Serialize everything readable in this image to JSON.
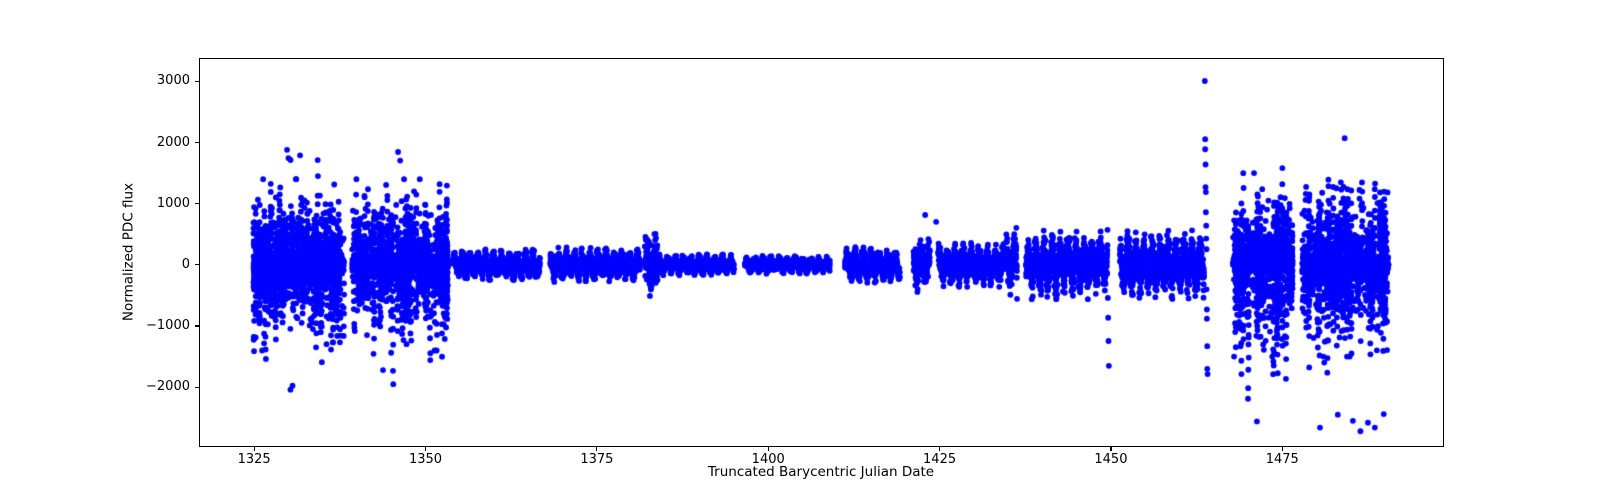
{
  "chart_data": {
    "type": "scatter",
    "title": "",
    "xlabel": "Truncated Barycentric Julian Date",
    "ylabel": "Normalized PDC flux",
    "xlim": [
      1317.1,
      1498.3
    ],
    "ylim": [
      -2945,
      3365
    ],
    "xticks": [
      1325,
      1350,
      1375,
      1400,
      1425,
      1450,
      1475
    ],
    "xtick_labels": [
      "1325",
      "1350",
      "1375",
      "1400",
      "1425",
      "1450",
      "1475"
    ],
    "yticks": [
      -2000,
      -1000,
      0,
      1000,
      2000,
      3000
    ],
    "ytick_labels": [
      "−2000",
      "−1000",
      "0",
      "1000",
      "2000",
      "3000"
    ],
    "grid": false,
    "legend": null,
    "marker": {
      "color": "#0000ff",
      "radius": 2.9
    },
    "axis_color": "#000000",
    "background": "#ffffff",
    "seed": 7,
    "description": "Light curve: noisy high-scatter sectors (~1325-1353 and ~1468-1491, flux spread roughly -2650..+2070 with dense core at 0), quiet oscillating ribbon segments between (amplitude 60-250), sector gaps, and outlier streaks (deepest -1650 at t~1450; tallest +3005 at t~1464).",
    "segments": [
      {
        "kind": "burst",
        "t0": 1324.9,
        "t1": 1338.1,
        "line_per_day": 48,
        "line_sigma": 45,
        "fill_per_day": 30,
        "fill_sigma": 290,
        "fill_cap": 1400,
        "streaks_per_day": 7,
        "amp_min": 260,
        "amp_sigma": 640,
        "cap_up": 1880,
        "cap_down": 2050,
        "down_scale": 1.0
      },
      {
        "kind": "burst",
        "t0": 1339.3,
        "t1": 1353.3,
        "line_per_day": 48,
        "line_sigma": 45,
        "fill_per_day": 30,
        "fill_sigma": 290,
        "fill_cap": 1400,
        "streaks_per_day": 7,
        "amp_min": 260,
        "amp_sigma": 640,
        "cap_up": 1880,
        "cap_down": 2050,
        "down_scale": 1.0
      },
      {
        "kind": "ribbon",
        "t0": 1354.0,
        "t1": 1366.7,
        "n_per_day": 70,
        "amp": 120,
        "sigma": 45,
        "period": 1.15,
        "phase": 0.5
      },
      {
        "kind": "ribbon",
        "t0": 1368.2,
        "t1": 1381.3,
        "n_per_day": 70,
        "amp": 135,
        "sigma": 50,
        "period": 1.15,
        "phase": 1.2
      },
      {
        "kind": "ribbon",
        "t0": 1382.0,
        "t1": 1383.9,
        "n_per_day": 75,
        "amp": 150,
        "sigma": 130,
        "period": 1.15,
        "phase": 0.0
      },
      {
        "kind": "ribbon",
        "t0": 1384.0,
        "t1": 1395.0,
        "n_per_day": 70,
        "amp": 80,
        "sigma": 30,
        "period": 1.15,
        "phase": 0.8
      },
      {
        "kind": "ribbon",
        "t0": 1396.6,
        "t1": 1409.0,
        "n_per_day": 70,
        "amp": 62,
        "sigma": 28,
        "period": 1.18,
        "phase": 0.3
      },
      {
        "kind": "ribbon",
        "t0": 1411.2,
        "t1": 1419.2,
        "n_per_day": 70,
        "amp": 150,
        "sigma": 48,
        "period": 1.17,
        "phase": 0.0
      },
      {
        "kind": "ribbon",
        "t0": 1421.2,
        "t1": 1423.6,
        "n_per_day": 75,
        "amp": 150,
        "sigma": 100,
        "period": 1.17,
        "phase": 2.0
      },
      {
        "kind": "ribbon",
        "t0": 1424.8,
        "t1": 1434.5,
        "n_per_day": 70,
        "amp": 180,
        "sigma": 60,
        "period": 1.17,
        "phase": 0.9
      },
      {
        "kind": "ribbon",
        "t0": 1434.5,
        "t1": 1436.3,
        "n_per_day": 75,
        "amp": 200,
        "sigma": 100,
        "period": 1.17,
        "phase": 0.4
      },
      {
        "kind": "ribbon",
        "t0": 1437.6,
        "t1": 1449.5,
        "n_per_day": 75,
        "amp": 250,
        "sigma": 105,
        "period": 1.17,
        "phase": 0.0
      },
      {
        "kind": "ribbon",
        "t0": 1451.3,
        "t1": 1463.6,
        "n_per_day": 75,
        "amp": 250,
        "sigma": 105,
        "period": 1.17,
        "phase": 1.5
      },
      {
        "kind": "burst",
        "t0": 1467.8,
        "t1": 1476.5,
        "line_per_day": 48,
        "line_sigma": 45,
        "fill_per_day": 30,
        "fill_sigma": 300,
        "fill_cap": 1500,
        "streaks_per_day": 7,
        "amp_min": 260,
        "amp_sigma": 620,
        "cap_up": 1720,
        "cap_down": 2680,
        "down_scale": 1.35
      },
      {
        "kind": "burst",
        "t0": 1477.9,
        "t1": 1490.5,
        "line_per_day": 48,
        "line_sigma": 45,
        "fill_per_day": 30,
        "fill_sigma": 300,
        "fill_cap": 1500,
        "streaks_per_day": 7,
        "amp_min": 260,
        "amp_sigma": 620,
        "cap_up": 1720,
        "cap_down": 2680,
        "down_scale": 1.35
      }
    ],
    "outliers": [
      [
        1329.8,
        1880
      ],
      [
        1330.0,
        1745
      ],
      [
        1331.7,
        1790
      ],
      [
        1330.3,
        -2040
      ],
      [
        1330.6,
        -1975
      ],
      [
        1343.8,
        -1720
      ],
      [
        1345.3,
        -1950
      ],
      [
        1346.0,
        1845
      ],
      [
        1346.3,
        1705
      ],
      [
        1422.9,
        815
      ],
      [
        1424.5,
        703
      ],
      [
        1436.2,
        605
      ],
      [
        1436.3,
        -556
      ],
      [
        1449.5,
        572
      ],
      [
        1449.55,
        -540
      ],
      [
        1449.6,
        -865
      ],
      [
        1449.65,
        -1245
      ],
      [
        1449.7,
        -1650
      ],
      [
        1463.7,
        3005
      ],
      [
        1463.75,
        2055
      ],
      [
        1463.75,
        1890
      ],
      [
        1463.8,
        1640
      ],
      [
        1463.8,
        1270
      ],
      [
        1463.85,
        1190
      ],
      [
        1463.85,
        860
      ],
      [
        1463.9,
        640
      ],
      [
        1463.9,
        430
      ],
      [
        1463.95,
        255
      ],
      [
        1463.95,
        -400
      ],
      [
        1464.0,
        -730
      ],
      [
        1464.0,
        -880
      ],
      [
        1464.05,
        -1330
      ],
      [
        1464.05,
        -1700
      ],
      [
        1464.1,
        -1785
      ],
      [
        1471.3,
        -2560
      ],
      [
        1480.5,
        -2660
      ],
      [
        1483.1,
        -2450
      ],
      [
        1484.1,
        2070
      ],
      [
        1485.3,
        -2550
      ],
      [
        1486.4,
        -2720
      ],
      [
        1487.5,
        -2580
      ],
      [
        1488.5,
        -2660
      ],
      [
        1489.8,
        -2440
      ]
    ]
  }
}
